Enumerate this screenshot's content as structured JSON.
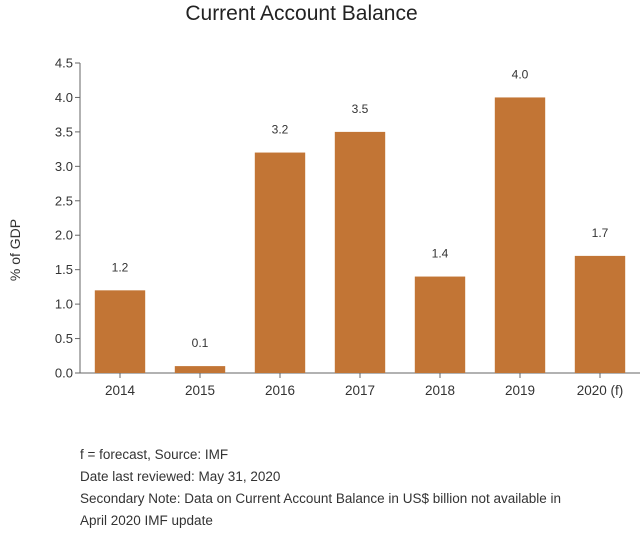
{
  "chart_data": {
    "type": "bar",
    "title": "Current Account Balance",
    "ylabel": "% of GDP",
    "xlabel": "",
    "categories": [
      "2014",
      "2015",
      "2016",
      "2017",
      "2018",
      "2019",
      "2020 (f)"
    ],
    "values": [
      1.2,
      0.1,
      3.2,
      3.5,
      1.4,
      4.0,
      1.7
    ],
    "value_labels": [
      "1.2",
      "0.1",
      "3.2",
      "3.5",
      "1.4",
      "4.0",
      "1.7"
    ],
    "ylim": [
      0,
      4.5
    ],
    "yticks": [
      "0.0",
      "0.5",
      "1.0",
      "1.5",
      "2.0",
      "2.5",
      "3.0",
      "3.5",
      "4.0",
      "4.5"
    ],
    "bar_color": "#C27535",
    "grid": false,
    "legend": "none"
  },
  "notes": {
    "line1": "f = forecast, Source: IMF",
    "line2": "Date last reviewed: May 31, 2020",
    "line3": "Secondary Note: Data on Current Account Balance in US$ billion not available in",
    "line4": "April 2020 IMF update"
  }
}
